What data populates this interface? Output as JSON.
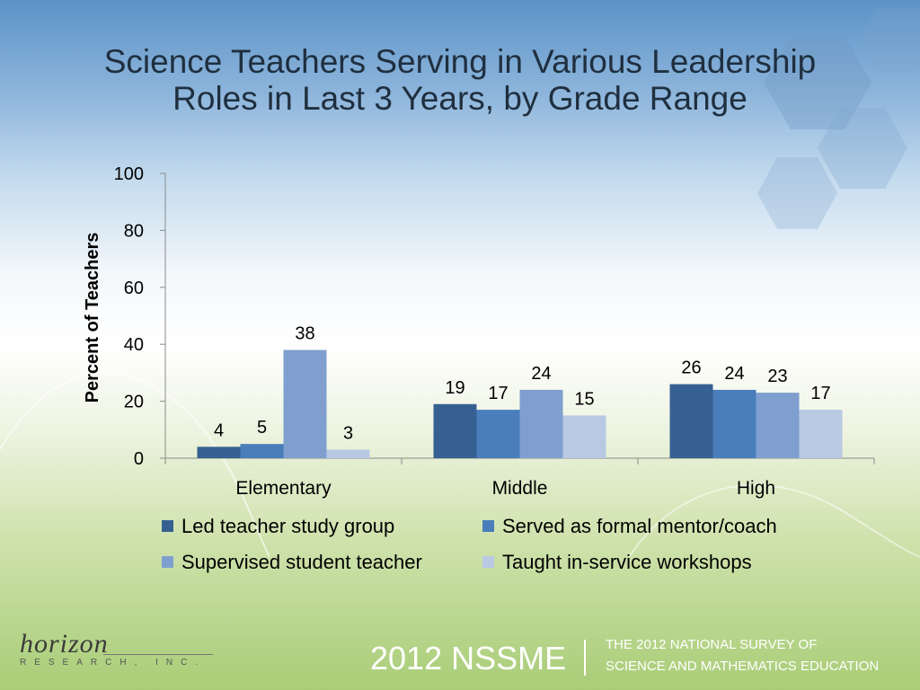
{
  "colors": {
    "series": [
      "#376092",
      "#4a7ebb",
      "#7f9fcf",
      "#b9c9e4"
    ],
    "axis": "#8a8a8a"
  },
  "chart_data": {
    "type": "bar",
    "title": [
      "Science Teachers Serving in Various Leadership",
      "Roles in Last 3 Years, by Grade Range"
    ],
    "ylabel": "Percent of Teachers",
    "xlabel": "",
    "ylim": [
      0,
      100
    ],
    "yticks": [
      "0",
      "20",
      "40",
      "60",
      "80",
      "100"
    ],
    "grid": false,
    "legend_position": "bottom",
    "categories": [
      "Elementary",
      "Middle",
      "High"
    ],
    "series": [
      {
        "name": "Led teacher study group",
        "values": [
          4,
          19,
          26
        ]
      },
      {
        "name": "Served as formal mentor/coach",
        "values": [
          5,
          17,
          24
        ]
      },
      {
        "name": "Supervised student teacher",
        "values": [
          38,
          24,
          23
        ]
      },
      {
        "name": "Taught in-service workshops",
        "values": [
          3,
          15,
          17
        ]
      }
    ]
  },
  "logo": {
    "word": "horizon",
    "sub": "RESEARCH, INC."
  },
  "footer": {
    "brand": "2012 NSSME",
    "sub_line1": "THE 2012 NATIONAL SURVEY OF",
    "sub_line2": "SCIENCE AND MATHEMATICS EDUCATION"
  }
}
